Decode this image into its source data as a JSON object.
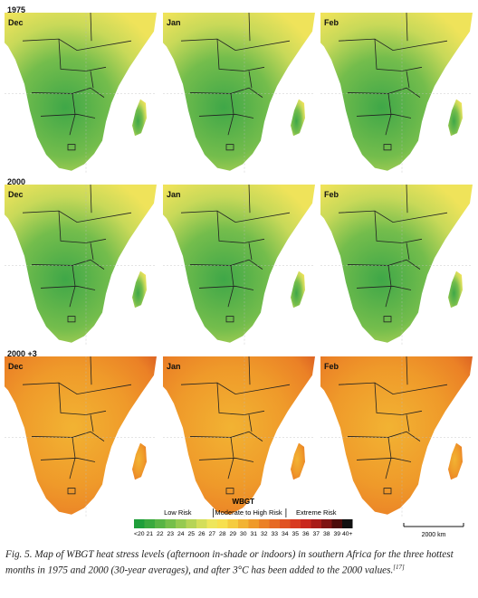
{
  "rows": [
    {
      "label": "1975",
      "months": [
        "Dec",
        "Jan",
        "Feb"
      ],
      "palette": "cool"
    },
    {
      "label": "2000",
      "months": [
        "Dec",
        "Jan",
        "Feb"
      ],
      "palette": "cool"
    },
    {
      "label": "2000 +3",
      "months": [
        "Dec",
        "Jan",
        "Feb"
      ],
      "palette": "hot"
    }
  ],
  "legend": {
    "title": "WBGT",
    "risks": [
      "Low Risk",
      "Moderate to High Risk",
      "Extreme Risk"
    ],
    "labels": [
      "<20",
      "21",
      "22",
      "23",
      "24",
      "25",
      "26",
      "27",
      "28",
      "29",
      "30",
      "31",
      "32",
      "33",
      "34",
      "35",
      "36",
      "37",
      "38",
      "39",
      "40+"
    ],
    "colors": [
      "#1f9e3a",
      "#3aa93e",
      "#58b444",
      "#76bf4a",
      "#96ca50",
      "#b6d456",
      "#d4de5a",
      "#eee65c",
      "#f7e04f",
      "#f5cc3f",
      "#f2b333",
      "#ef9a2a",
      "#eb8126",
      "#e66a24",
      "#e05322",
      "#d83b20",
      "#c9281d",
      "#a81c18",
      "#7e1412",
      "#4c0c0a",
      "#111111"
    ]
  },
  "scale_bar": "2000 km",
  "caption": {
    "text": "Fig. 5. Map of WBGT heat stress levels (afternoon in-shade or indoors) in southern Africa for the three hottest months in 1975 and 2000 (30-year averages), and after 3°C has been added to the 2000 values.",
    "ref": "[17]"
  }
}
